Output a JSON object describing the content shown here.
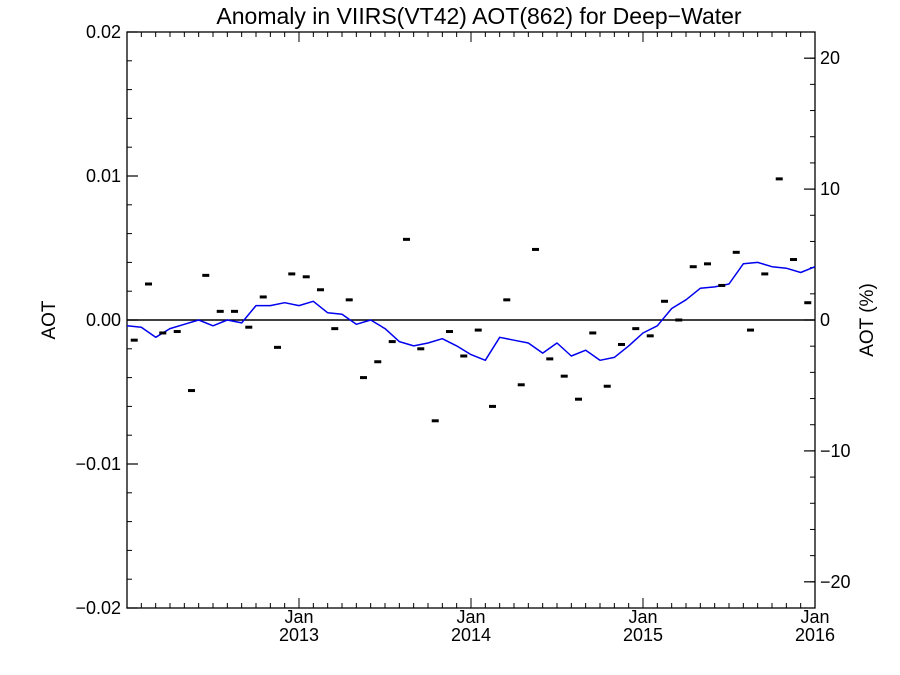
{
  "chart_data": {
    "type": "line",
    "title": "Anomaly in VIIRS(VT42) AOT(862) for Deep−Water",
    "ylabel": "AOT",
    "y2label": "AOT (%)",
    "xlabel": "",
    "xlim": [
      2012.0,
      2016.0
    ],
    "ylim": [
      -0.02,
      0.02
    ],
    "y2lim": [
      -22,
      22
    ],
    "grid": false,
    "legend": "none",
    "x_ticks": [
      {
        "value": 2013.0,
        "month": "Jan",
        "year": "2013"
      },
      {
        "value": 2014.0,
        "month": "Jan",
        "year": "2014"
      },
      {
        "value": 2015.0,
        "month": "Jan",
        "year": "2015"
      },
      {
        "value": 2016.0,
        "month": "Jan",
        "year": "2016"
      }
    ],
    "y_ticks": [
      {
        "value": 0.02,
        "label": "0.02"
      },
      {
        "value": 0.01,
        "label": "0.01"
      },
      {
        "value": 0.0,
        "label": "0.00"
      },
      {
        "value": -0.01,
        "label": "−0.01"
      },
      {
        "value": -0.02,
        "label": "−0.02"
      }
    ],
    "y2_ticks": [
      {
        "value": 20,
        "label": "20"
      },
      {
        "value": 10,
        "label": "10"
      },
      {
        "value": 0,
        "label": "0"
      },
      {
        "value": -10,
        "label": "−10"
      },
      {
        "value": -20,
        "label": "−20"
      }
    ],
    "zero_line": 0.0,
    "series": [
      {
        "style": "dashes",
        "color": "#000000",
        "x": [
          2012.042,
          2012.125,
          2012.208,
          2012.292,
          2012.375,
          2012.458,
          2012.542,
          2012.625,
          2012.708,
          2012.792,
          2012.875,
          2012.958,
          2013.042,
          2013.125,
          2013.208,
          2013.292,
          2013.375,
          2013.458,
          2013.542,
          2013.625,
          2013.708,
          2013.792,
          2013.875,
          2013.958,
          2014.042,
          2014.125,
          2014.208,
          2014.292,
          2014.375,
          2014.458,
          2014.542,
          2014.625,
          2014.708,
          2014.792,
          2014.875,
          2014.958,
          2015.042,
          2015.125,
          2015.208,
          2015.292,
          2015.375,
          2015.458,
          2015.542,
          2015.625,
          2015.708,
          2015.792,
          2015.875,
          2015.958
        ],
        "values": [
          -0.0014,
          0.0025,
          -0.0009,
          -0.0008,
          -0.0049,
          0.0031,
          0.0006,
          0.0006,
          -0.0005,
          0.0016,
          -0.0019,
          0.0032,
          0.003,
          0.0021,
          -0.0006,
          0.0014,
          -0.004,
          -0.0029,
          -0.0015,
          0.0056,
          -0.002,
          -0.007,
          -0.0008,
          -0.0025,
          -0.0007,
          -0.006,
          0.0014,
          -0.0045,
          0.0049,
          -0.0027,
          -0.0039,
          -0.0055,
          -0.0009,
          -0.0046,
          -0.0017,
          -0.0006,
          -0.0011,
          0.0013,
          0.0,
          0.0037,
          0.0039,
          0.0024,
          0.0047,
          -0.0007,
          0.0032,
          0.0098,
          0.0042,
          0.0012
        ]
      },
      {
        "style": "line",
        "color": "#0000ee",
        "x": [
          2012.0,
          2012.083,
          2012.167,
          2012.25,
          2012.333,
          2012.417,
          2012.5,
          2012.583,
          2012.667,
          2012.75,
          2012.833,
          2012.917,
          2013.0,
          2013.083,
          2013.167,
          2013.25,
          2013.333,
          2013.417,
          2013.5,
          2013.583,
          2013.667,
          2013.75,
          2013.833,
          2013.917,
          2014.0,
          2014.083,
          2014.167,
          2014.25,
          2014.333,
          2014.417,
          2014.5,
          2014.583,
          2014.667,
          2014.75,
          2014.833,
          2014.917,
          2015.0,
          2015.083,
          2015.167,
          2015.25,
          2015.333,
          2015.417,
          2015.5,
          2015.583,
          2015.667,
          2015.75,
          2015.833,
          2015.917,
          2016.0
        ],
        "values": [
          -0.0004,
          -0.0005,
          -0.0012,
          -0.0006,
          -0.0003,
          0.0,
          -0.0004,
          0.0,
          -0.0002,
          0.001,
          0.001,
          0.0012,
          0.001,
          0.0013,
          0.0005,
          0.0004,
          -0.0003,
          0.0,
          -0.0006,
          -0.0015,
          -0.0018,
          -0.0016,
          -0.0013,
          -0.0018,
          -0.0024,
          -0.0028,
          -0.0012,
          -0.0014,
          -0.0016,
          -0.0023,
          -0.0016,
          -0.0025,
          -0.0021,
          -0.0028,
          -0.0026,
          -0.0018,
          -0.0009,
          -0.0004,
          0.0008,
          0.0014,
          0.0022,
          0.0023,
          0.0025,
          0.0039,
          0.004,
          0.0037,
          0.0036,
          0.0033,
          0.0037
        ]
      }
    ]
  }
}
